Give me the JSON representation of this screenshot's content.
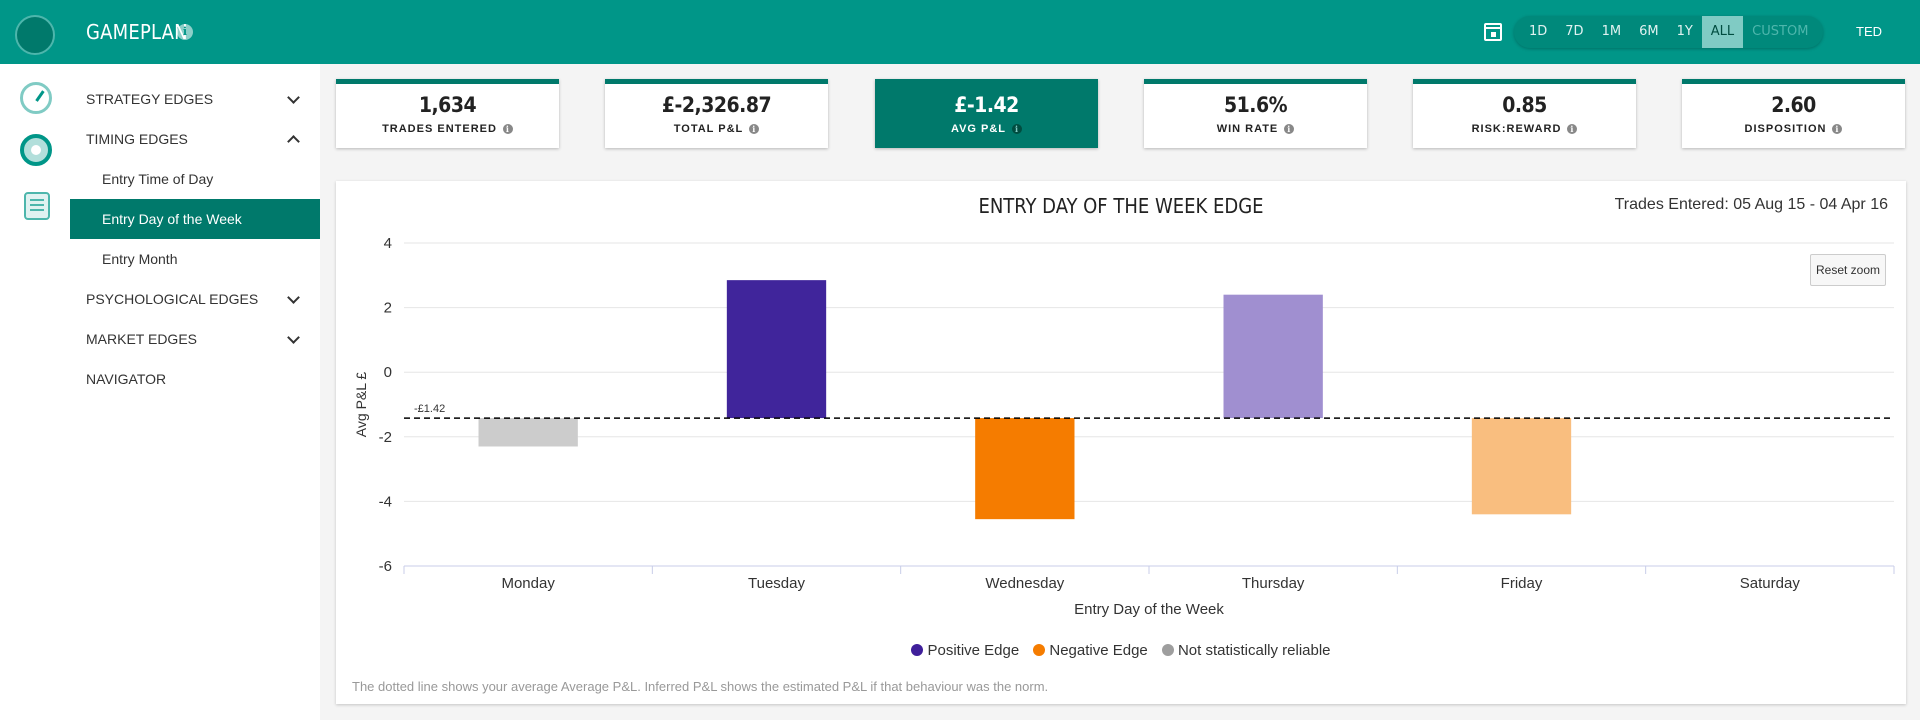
{
  "header": {
    "title": "GAMEPLAN",
    "user": "TED",
    "ranges": [
      "1D",
      "7D",
      "1M",
      "6M",
      "1Y",
      "ALL",
      "CUSTOM"
    ],
    "active_range": "ALL"
  },
  "sidebar": {
    "items": [
      {
        "label": "STRATEGY EDGES",
        "chevron": "down"
      },
      {
        "label": "TIMING EDGES",
        "chevron": "up"
      },
      {
        "label": "Entry Time of Day"
      },
      {
        "label": "Entry Day of the Week",
        "active": true
      },
      {
        "label": "Entry Month"
      },
      {
        "label": "PSYCHOLOGICAL EDGES",
        "chevron": "down"
      },
      {
        "label": "MARKET EDGES",
        "chevron": "down"
      },
      {
        "label": "NAVIGATOR"
      }
    ]
  },
  "cards": [
    {
      "value": "1,634",
      "label": "TRADES ENTERED"
    },
    {
      "value": "£-2,326.87",
      "label": "TOTAL P&L"
    },
    {
      "value": "£-1.42",
      "label": "AVG P&L",
      "highlight": true
    },
    {
      "value": "51.6%",
      "label": "WIN RATE"
    },
    {
      "value": "0.85",
      "label": "RISK:REWARD"
    },
    {
      "value": "2.60",
      "label": "DISPOSITION"
    }
  ],
  "chart_panel": {
    "title": "ENTRY DAY OF THE WEEK EDGE",
    "trades_range": "Trades Entered: 05 Aug 15 - 04 Apr 16",
    "reset_zoom": "Reset zoom",
    "footnote": "The dotted line shows your average Average P&L.  Inferred P&L shows the estimated P&L if that behaviour was the norm."
  },
  "legend": [
    {
      "label": "Positive Edge",
      "color": "#3f1f9a"
    },
    {
      "label": "Negative Edge",
      "color": "#f57c00"
    },
    {
      "label": "Not statistically reliable",
      "color": "#9e9e9e"
    }
  ],
  "chart_data": {
    "type": "bar",
    "title": "ENTRY DAY OF THE WEEK EDGE",
    "xlabel": "Entry Day of the Week",
    "ylabel": "Avg P&L £",
    "categories": [
      "Monday",
      "Tuesday",
      "Wednesday",
      "Thursday",
      "Friday",
      "Saturday"
    ],
    "values": [
      -2.3,
      2.85,
      -4.55,
      2.4,
      -4.4,
      null
    ],
    "base": -1.42,
    "base_label": "-£1.42",
    "ylim": [
      -6,
      4
    ],
    "yticks": [
      4,
      2,
      0,
      -2,
      -4,
      -6
    ],
    "grid": true,
    "bar_colors": [
      "#cccccc",
      "#40259b",
      "#f57c00",
      "#a08fd0",
      "#f9be7f",
      null
    ],
    "legend_position": "bottom"
  }
}
